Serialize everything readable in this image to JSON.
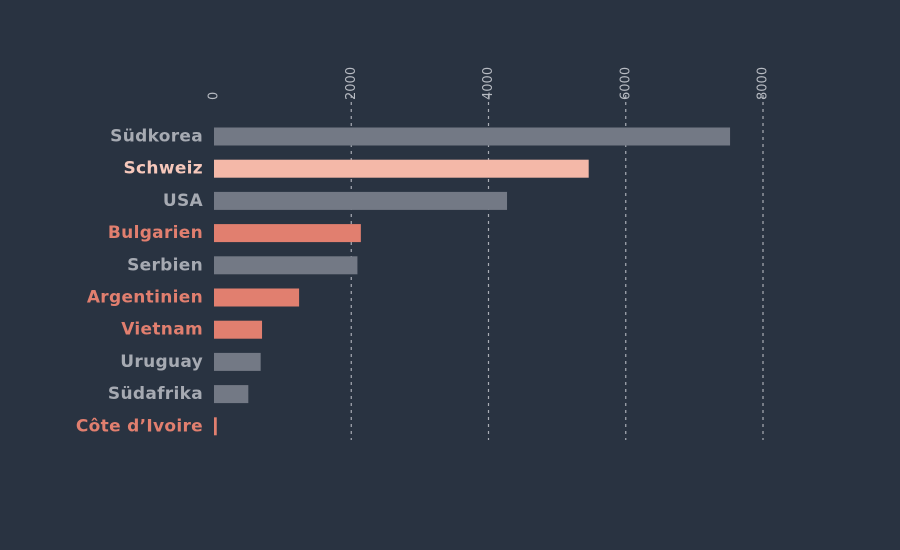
{
  "chart_data": {
    "type": "bar",
    "orientation": "horizontal",
    "title": "",
    "xlabel": "",
    "ylabel": "",
    "xlim": [
      0,
      8000
    ],
    "xticks": [
      0,
      2000,
      4000,
      6000,
      8000
    ],
    "tick_labels": [
      "0",
      "2000",
      "4000",
      "6000",
      "8000"
    ],
    "grid": true,
    "categories": [
      "Südkorea",
      "Schweiz",
      "USA",
      "Bulgarien",
      "Serbien",
      "Argentinien",
      "Vietnam",
      "Uruguay",
      "Südafrika",
      "Côte d’Ivoire"
    ],
    "values": [
      7520,
      5460,
      4270,
      2140,
      2090,
      1240,
      700,
      680,
      500,
      40
    ],
    "highlight": [
      "none",
      "light",
      "none",
      "strong",
      "none",
      "strong",
      "strong",
      "none",
      "none",
      "strong"
    ],
    "colors": {
      "background": "#293341",
      "default_bar": "#737985",
      "default_label": "#a6aab2",
      "strong_bar": "#e17f6f",
      "strong_label": "#e17f6f",
      "light_bar": "#f4b8a8",
      "light_label": "#f6c8bb",
      "grid": "#a9adb5",
      "tick_label": "#b7bbc2"
    }
  }
}
